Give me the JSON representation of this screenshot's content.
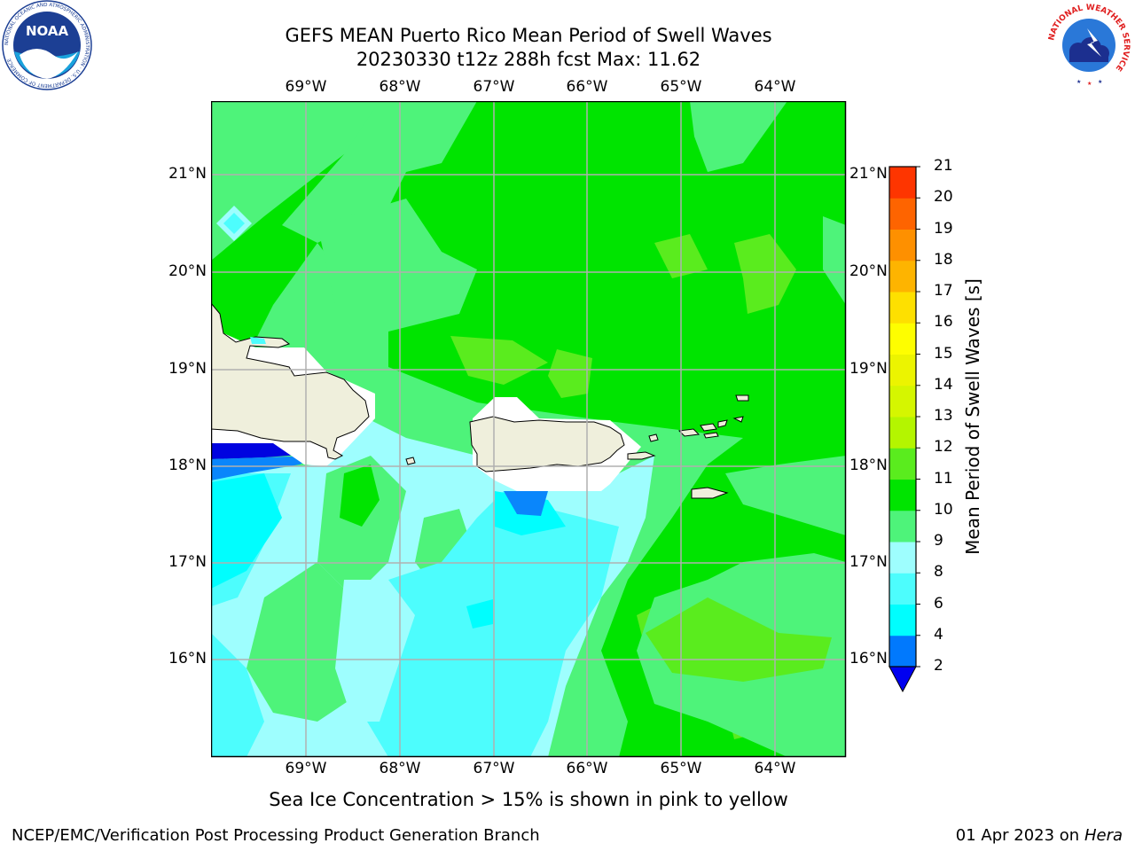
{
  "title": {
    "line1": "GEFS MEAN Puerto Rico Mean Period of Swell Waves",
    "line2": "20230330 t12z 288h fcst   Max: 11.62"
  },
  "note": "Sea Ice Concentration > 15% is shown in pink to yellow",
  "footer": {
    "left": "NCEP/EMC/Verification Post Processing Product Generation Branch",
    "date": "01 Apr 2023 on ",
    "machine": "Hera"
  },
  "map": {
    "lon_labels": [
      "69°W",
      "68°W",
      "67°W",
      "66°W",
      "65°W",
      "64°W"
    ],
    "lat_labels": [
      "21°N",
      "20°N",
      "19°N",
      "18°N",
      "17°N",
      "16°N"
    ],
    "colors": {
      "land": "#efefdc",
      "green_bright": "#00e400",
      "green_medium": "#4ef37a",
      "lime": "#5aec1e",
      "aqua_light": "#9efefe",
      "cyan": "#4dfdfd",
      "cyan_deep": "#00fefe",
      "blue": "#0a86fb",
      "blue_dark": "#0003e0"
    }
  },
  "colorbar": {
    "title": "Mean Period of Swell Waves [s]",
    "tick_labels": [
      "21",
      "20",
      "19",
      "18",
      "17",
      "16",
      "15",
      "14",
      "13",
      "12",
      "11",
      "10",
      "9",
      "8",
      "6",
      "4",
      "2"
    ],
    "colors_bottom_to_top": [
      "#0179fd",
      "#00fefe",
      "#4dfdfd",
      "#9efefe",
      "#4ef37a",
      "#00e400",
      "#5aec1e",
      "#b4f500",
      "#d5f600",
      "#ecf400",
      "#fefe00",
      "#fee000",
      "#feb400",
      "#fe9000",
      "#fe6400",
      "#fe3500"
    ],
    "extend_color": "#0000f0"
  },
  "logos": {
    "noaa_text": "NOAA",
    "noaa_ring": "NATIONAL OCEANIC AND ATMOSPHERIC ADMINISTRATION · U.S. DEPARTMENT OF COMMERCE",
    "nws_ring": "NATIONAL WEATHER SERVICE"
  }
}
